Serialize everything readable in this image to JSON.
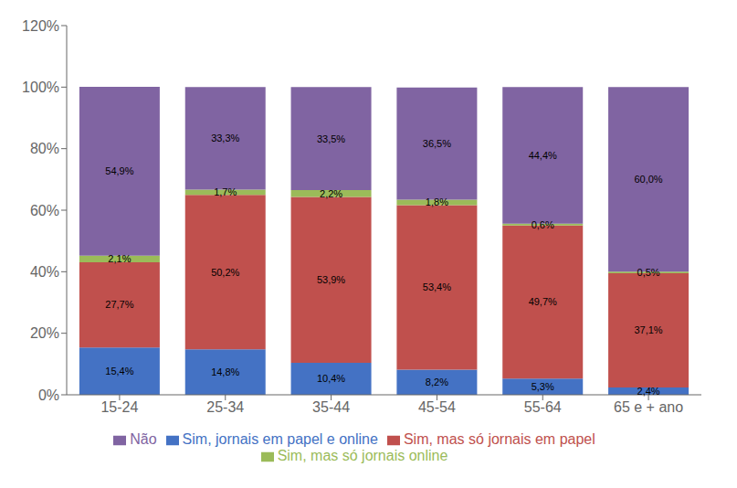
{
  "chart_data": {
    "type": "bar",
    "stacked": true,
    "categories": [
      "15-24",
      "25-34",
      "35-44",
      "45-54",
      "55-64",
      "65 e + ano"
    ],
    "series": [
      {
        "name": "Sim, jornais em papel e online",
        "color": "#4472C4",
        "values": [
          15.4,
          14.8,
          10.4,
          8.2,
          5.3,
          2.4
        ],
        "value_labels": [
          "15,4%",
          "14,8%",
          "10,4%",
          "8,2%",
          "5,3%",
          "2,4%"
        ]
      },
      {
        "name": "Sim, mas só jornais em papel",
        "color": "#C0504D",
        "values": [
          27.7,
          50.2,
          53.9,
          53.4,
          49.7,
          37.1
        ],
        "value_labels": [
          "27,7%",
          "50,2%",
          "53,9%",
          "53,4%",
          "49,7%",
          "37,1%"
        ]
      },
      {
        "name": "Sim, mas só jornais online",
        "color": "#9BBB59",
        "values": [
          2.1,
          1.7,
          2.2,
          1.8,
          0.6,
          0.5
        ],
        "value_labels": [
          "2,1%",
          "1,7%",
          "2,2%",
          "1,8%",
          "0,6%",
          "0,5%"
        ]
      },
      {
        "name": "Não",
        "color": "#8064A2",
        "values": [
          54.9,
          33.3,
          33.5,
          36.5,
          44.4,
          60.0
        ],
        "value_labels": [
          "54,9%",
          "33,3%",
          "33,5%",
          "36,5%",
          "44,4%",
          "60,0%"
        ]
      }
    ],
    "ylim": [
      0,
      120
    ],
    "yticks": [
      {
        "value": 0,
        "label": "0%"
      },
      {
        "value": 20,
        "label": "20%"
      },
      {
        "value": 40,
        "label": "40%"
      },
      {
        "value": 60,
        "label": "60%"
      },
      {
        "value": 80,
        "label": "80%"
      },
      {
        "value": 100,
        "label": "100%"
      },
      {
        "value": 120,
        "label": "120%"
      }
    ],
    "grid": false,
    "legend": "bottom",
    "data_labels": true
  }
}
